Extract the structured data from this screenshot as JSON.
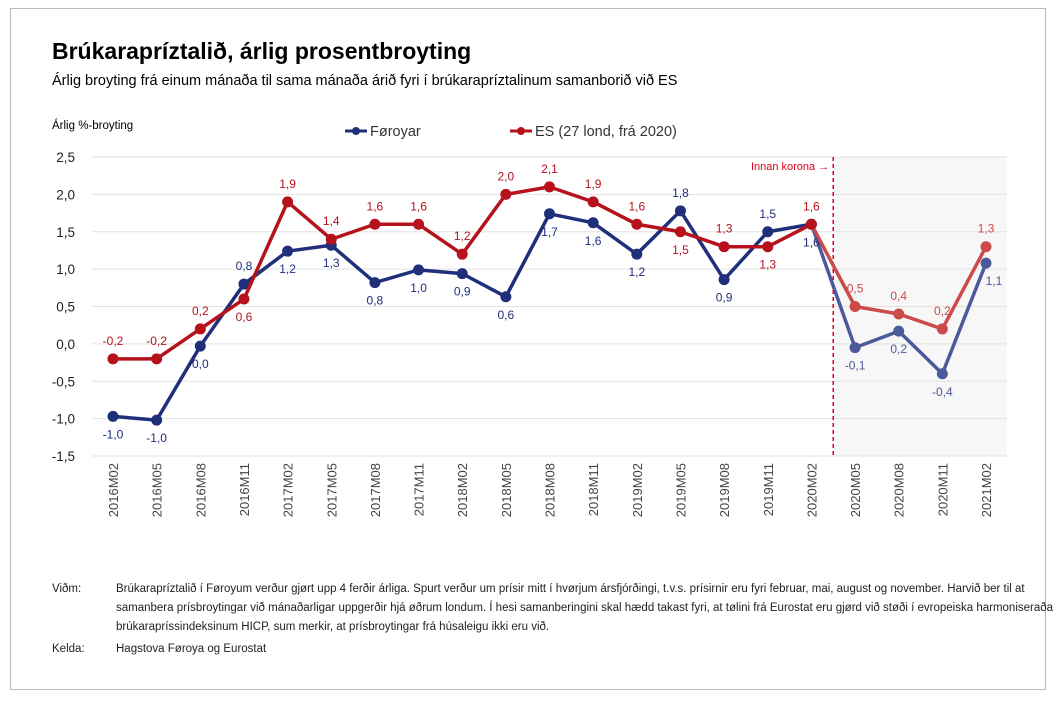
{
  "title": "Brúkarapríztalið, árlig prosentbroyting",
  "subtitle": "Árlig broyting frá einum mánaða til sama mánaða árið fyri í brúkarapríztalinum samanborið við ES",
  "chart_data": {
    "type": "line",
    "title": "Brúkarapríztalið, árlig prosentbroyting",
    "ylabel": "Árlig %-broyting",
    "ylim": [
      -1.5,
      2.5
    ],
    "yticks": [
      "2,5",
      "2,0",
      "1,5",
      "1,0",
      "0,5",
      "0,0",
      "-0,5",
      "-1,0",
      "-1,5"
    ],
    "ytick_values": [
      2.5,
      2.0,
      1.5,
      1.0,
      0.5,
      0.0,
      -0.5,
      -1.0,
      -1.5
    ],
    "grid": true,
    "legend_placement": "top",
    "categories": [
      "2016M02",
      "2016M05",
      "2016M08",
      "2016M11",
      "2017M02",
      "2017M05",
      "2017M08",
      "2017M11",
      "2018M02",
      "2018M05",
      "2018M08",
      "2018M11",
      "2019M02",
      "2019M05",
      "2019M08",
      "2019M11",
      "2020M02",
      "2020M05",
      "2020M08",
      "2020M11",
      "2021M02"
    ],
    "series": [
      {
        "name": "Føroyar",
        "color": "#1f2f7a",
        "values": [
          -0.97,
          -1.02,
          -0.03,
          0.8,
          1.24,
          1.32,
          0.82,
          0.99,
          0.94,
          0.63,
          1.74,
          1.62,
          1.2,
          1.78,
          0.86,
          1.5,
          1.6,
          -0.05,
          0.17,
          -0.4,
          1.08
        ],
        "labels": [
          "-1,0",
          "-1,0",
          "0,0",
          "0,8",
          "1,2",
          "1,3",
          "0,8",
          "1,0",
          "0,9",
          "0,6",
          "1,7",
          "1,6",
          "1,2",
          "1,8",
          "0,9",
          "1,5",
          "1,6",
          "-0,1",
          "0,2",
          "-0,4",
          "1,1"
        ]
      },
      {
        "name": "ES (27 lond, frá 2020)",
        "color": "#b5121b",
        "values": [
          -0.2,
          -0.2,
          0.2,
          0.6,
          1.9,
          1.4,
          1.6,
          1.6,
          1.2,
          2.0,
          2.1,
          1.9,
          1.6,
          1.5,
          1.3,
          1.3,
          1.6,
          0.5,
          0.4,
          0.2,
          1.3
        ],
        "labels": [
          "-0,2",
          "-0,2",
          "0,2",
          "0,6",
          "1,9",
          "1,4",
          "1,6",
          "1,6",
          "1,2",
          "2,0",
          "2,1",
          "1,9",
          "1,6",
          "1,5",
          "1,3",
          "1,3",
          "1,6",
          "0,5",
          "0,4",
          "0,2",
          "1,3"
        ]
      }
    ],
    "annotation": "Innan korona →",
    "annotation_color": "#e0001b"
  },
  "notes": {
    "note_label": "Viðm:",
    "note_text": "Brúkarapríztalið í Føroyum verður gjørt upp 4 ferðir árliga. Spurt verður um prísir mitt í hvørjum ársfjórðingi, t.v.s. prísirnir eru fyri februar, mai, august og november. Harvið ber til at samanbera prísbroytingar við mánaðarligar uppgerðir hjá øðrum londum. Í hesi samanberingini skal hædd takast fyri, at tølini frá Eurostat eru gjørd við støði í evropeiska harmoniseraða brúkarapríssindeksinum HICP, sum merkir, at prísbroytingar frá húsaleigu ikki eru við.",
    "source_label": "Kelda:",
    "source_text": "Hagstova Føroya og Eurostat"
  }
}
